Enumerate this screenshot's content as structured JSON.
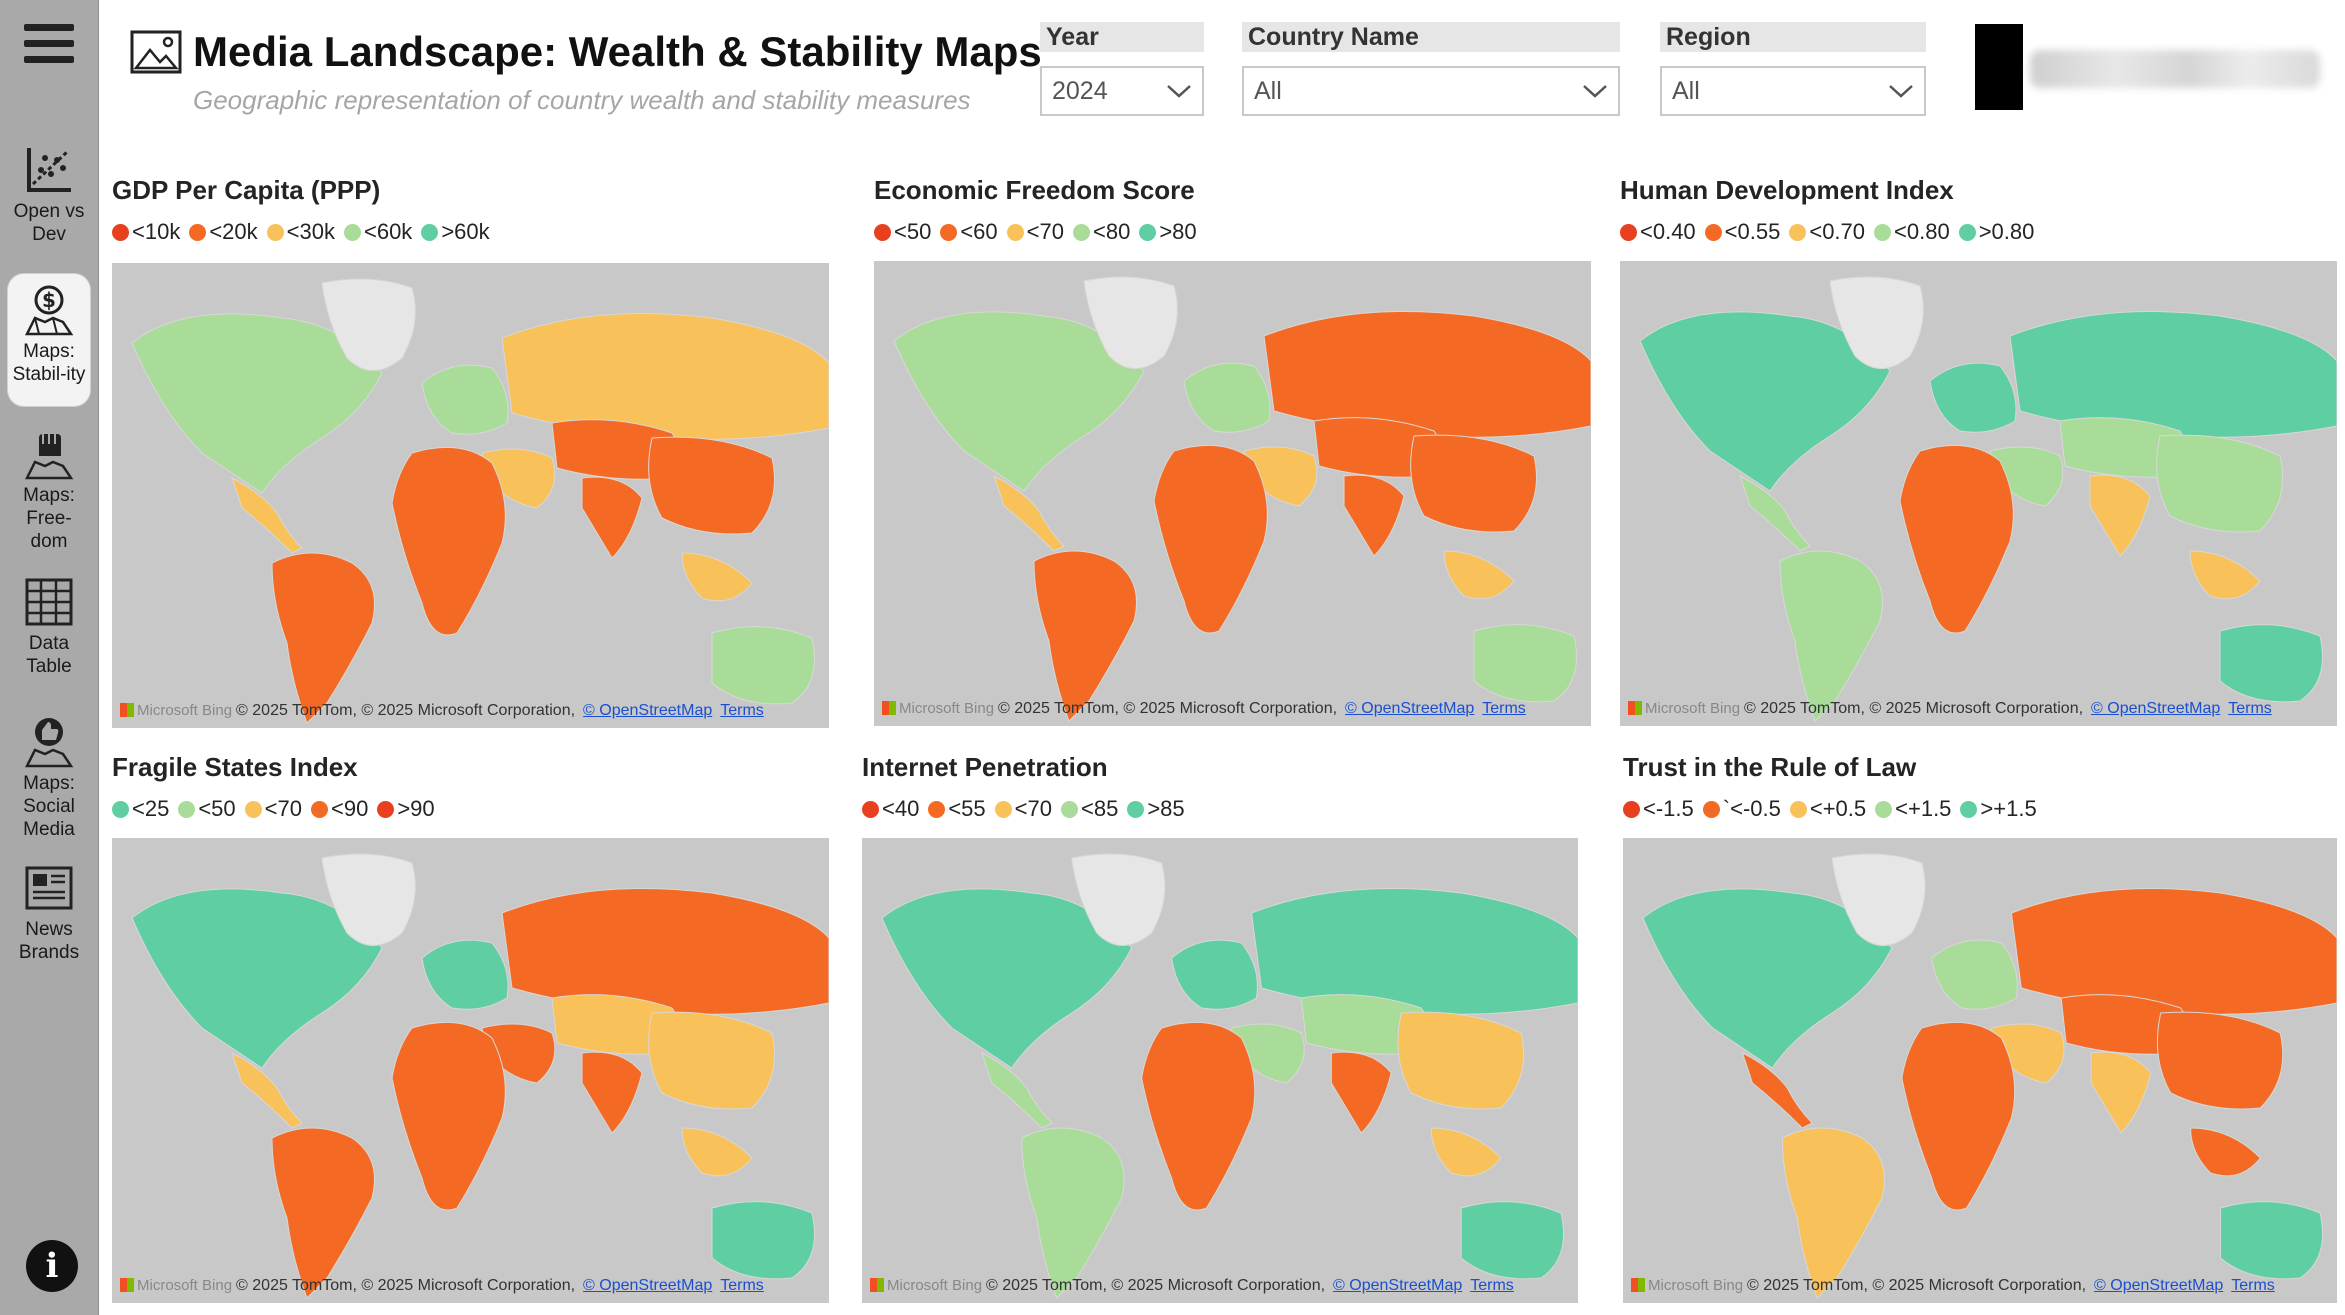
{
  "nav": {
    "items": [
      {
        "label": "Open vs Dev",
        "icon": "scatter-chart-icon",
        "active": false
      },
      {
        "label": "Maps: Stabil-ity",
        "icon": "money-map-icon",
        "active": true
      },
      {
        "label": "Maps: Free-dom",
        "icon": "fist-map-icon",
        "active": false
      },
      {
        "label": "Data Table",
        "icon": "table-grid-icon",
        "active": false
      },
      {
        "label": "Maps: Social Media",
        "icon": "thumbs-up-map-icon",
        "active": false
      },
      {
        "label": "News Brands",
        "icon": "newspaper-icon",
        "active": false
      }
    ],
    "info": "i"
  },
  "header": {
    "title": "Media Landscape: Wealth & Stability Maps",
    "subtitle": "Geographic representation of country wealth and stability measures",
    "title_icon": "image-icon"
  },
  "filters": {
    "year": {
      "label": "Year",
      "value": "2024"
    },
    "country": {
      "label": "Country Name",
      "value": "All"
    },
    "region": {
      "label": "Region",
      "value": "All"
    }
  },
  "credit": {
    "brand": "Microsoft Bing",
    "text": "© 2025 TomTom, © 2025 Microsoft Corporation,",
    "osm": "© OpenStreetMap",
    "terms": "Terms"
  },
  "colors": {
    "red": "#e8401f",
    "orange": "#f46a25",
    "yellow": "#f9c15a",
    "lightgreen": "#a8dc98",
    "teal": "#5fcea3",
    "map_background": "#c8c8c8"
  },
  "maps": [
    {
      "title": "GDP Per Capita (PPP)",
      "legend": [
        {
          "label": "<10k",
          "color": "#e8401f"
        },
        {
          "label": "<20k",
          "color": "#f46a25"
        },
        {
          "label": "<30k",
          "color": "#f9c15a"
        },
        {
          "label": "<60k",
          "color": "#a8dc98"
        },
        {
          "label": ">60k",
          "color": "#5fcea3"
        }
      ]
    },
    {
      "title": "Economic Freedom Score",
      "legend": [
        {
          "label": "<50",
          "color": "#e8401f"
        },
        {
          "label": "<60",
          "color": "#f46a25"
        },
        {
          "label": "<70",
          "color": "#f9c15a"
        },
        {
          "label": "<80",
          "color": "#a8dc98"
        },
        {
          "label": ">80",
          "color": "#5fcea3"
        }
      ]
    },
    {
      "title": "Human Development Index",
      "legend": [
        {
          "label": "<0.40",
          "color": "#e8401f"
        },
        {
          "label": "<0.55",
          "color": "#f46a25"
        },
        {
          "label": "<0.70",
          "color": "#f9c15a"
        },
        {
          "label": "<0.80",
          "color": "#a8dc98"
        },
        {
          "label": ">0.80",
          "color": "#5fcea3"
        }
      ]
    },
    {
      "title": "Fragile States Index",
      "legend": [
        {
          "label": "<25",
          "color": "#5fcea3"
        },
        {
          "label": "<50",
          "color": "#a8dc98"
        },
        {
          "label": "<70",
          "color": "#f9c15a"
        },
        {
          "label": "<90",
          "color": "#f46a25"
        },
        {
          "label": ">90",
          "color": "#e8401f"
        }
      ]
    },
    {
      "title": "Internet Penetration",
      "legend": [
        {
          "label": "<40",
          "color": "#e8401f"
        },
        {
          "label": "<55",
          "color": "#f46a25"
        },
        {
          "label": "<70",
          "color": "#f9c15a"
        },
        {
          "label": "<85",
          "color": "#a8dc98"
        },
        {
          "label": ">85",
          "color": "#5fcea3"
        }
      ]
    },
    {
      "title": "Trust in the Rule of Law",
      "legend": [
        {
          "label": "<-1.5",
          "color": "#e8401f"
        },
        {
          "label": "`<-0.5",
          "color": "#f46a25"
        },
        {
          "label": "<+0.5",
          "color": "#f9c15a"
        },
        {
          "label": "<+1.5",
          "color": "#a8dc98"
        },
        {
          "label": ">+1.5",
          "color": "#5fcea3"
        }
      ]
    }
  ]
}
